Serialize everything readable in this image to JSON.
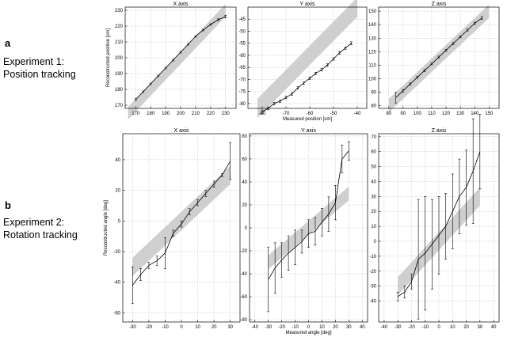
{
  "rows": [
    {
      "letter": "a",
      "desc": [
        "Experiment 1:",
        "Position tracking"
      ]
    },
    {
      "letter": "b",
      "desc": [
        "Experiment 2:",
        "Rotation tracking"
      ]
    }
  ],
  "colors": {
    "band": "#cfcfcf",
    "line": "#000000",
    "grid": "#bdbdbd",
    "frame": "#000000"
  },
  "chart_data": [
    {
      "type": "line",
      "title": "X axis",
      "ylabel": "Reconstructed position [cm]",
      "xlabel": "",
      "xlim": [
        163,
        237
      ],
      "ylim": [
        168,
        232
      ],
      "xticks": [
        170,
        180,
        190,
        200,
        210,
        220,
        230
      ],
      "yticks": [
        170,
        180,
        190,
        200,
        210,
        220,
        230
      ],
      "grid": true,
      "band": {
        "x": [
          165,
          230
        ],
        "half_width": 4
      },
      "series": [
        {
          "x": [
            170,
            175,
            180,
            185,
            190,
            195,
            200,
            205,
            210,
            215,
            220,
            225,
            230
          ],
          "y": [
            173.5,
            178.5,
            183.5,
            188.5,
            193.5,
            198.5,
            203.5,
            208.5,
            213.5,
            217.5,
            221,
            224,
            226
          ],
          "err": [
            0.6,
            0.5,
            0.5,
            0.5,
            0.5,
            0.5,
            0.5,
            0.5,
            0.5,
            0.5,
            0.5,
            0.6,
            0.8
          ]
        }
      ]
    },
    {
      "type": "line",
      "title": "Y axis",
      "ylabel": "",
      "xlabel": "Measured position [cm]",
      "xlim": [
        -86,
        -36
      ],
      "ylim": [
        -82,
        -40
      ],
      "xticks": [
        -80,
        -70,
        -60,
        -50,
        -40
      ],
      "yticks": [
        -80,
        -75,
        -70,
        -65,
        -60,
        -55,
        -50,
        -45
      ],
      "grid": true,
      "band": {
        "x": [
          -82,
          -40
        ],
        "half_width": 4
      },
      "series": [
        {
          "x": [
            -80,
            -77.5,
            -75,
            -72.5,
            -70,
            -67.5,
            -65,
            -62.5,
            -60,
            -57.5,
            -55,
            -52.5,
            -50,
            -47.5,
            -45,
            -42.5
          ],
          "y": [
            -83.5,
            -82,
            -80,
            -79,
            -77.5,
            -76,
            -73.5,
            -71.5,
            -69.5,
            -67.5,
            -66,
            -64,
            -61.5,
            -59,
            -57,
            -55
          ],
          "err": [
            0.8,
            0.6,
            0.5,
            0.5,
            0.5,
            0.5,
            0.5,
            0.5,
            0.5,
            0.5,
            0.5,
            0.5,
            0.5,
            0.5,
            0.5,
            0.6
          ]
        }
      ]
    },
    {
      "type": "line",
      "title": "Z axis",
      "ylabel": "",
      "xlabel": "",
      "xlim": [
        73,
        157
      ],
      "ylim": [
        78,
        153
      ],
      "xticks": [
        80,
        90,
        100,
        110,
        120,
        130,
        140,
        150
      ],
      "yticks": [
        80,
        90,
        100,
        110,
        120,
        130,
        140,
        150
      ],
      "grid": true,
      "band": {
        "x": [
          80,
          150
        ],
        "half_width": 5
      },
      "series": [
        {
          "x": [
            85,
            90,
            95,
            100,
            105,
            110,
            115,
            120,
            125,
            130,
            135,
            140,
            145
          ],
          "y": [
            86,
            91,
            96,
            101,
            106,
            111,
            116,
            121,
            126,
            131,
            136,
            141,
            145
          ],
          "err": [
            4,
            1,
            0.8,
            0.7,
            0.7,
            0.7,
            0.7,
            0.7,
            0.7,
            0.7,
            0.7,
            0.8,
            1
          ]
        }
      ]
    },
    {
      "type": "line",
      "title": "X axis",
      "ylabel": "Reconstructed angle [deg]",
      "xlabel": "",
      "xlim": [
        -36,
        36
      ],
      "ylim": [
        -66,
        57
      ],
      "xticks": [
        -30,
        -20,
        -10,
        0,
        10,
        20,
        30
      ],
      "yticks": [
        -60,
        -40,
        -20,
        0,
        20,
        40
      ],
      "grid": true,
      "band": {
        "x": [
          -30,
          30
        ],
        "half_width": 6
      },
      "series": [
        {
          "x": [
            -30,
            -25,
            -20,
            -15,
            -10,
            -5,
            0,
            5,
            10,
            15,
            20,
            25,
            30
          ],
          "y": [
            -42,
            -35,
            -29,
            -26,
            -21,
            -8,
            -2,
            6,
            12,
            18,
            24,
            30,
            39
          ],
          "err": [
            12,
            4,
            2,
            3,
            10,
            2,
            2,
            2,
            2,
            2,
            2,
            1,
            12
          ]
        }
      ]
    },
    {
      "type": "line",
      "title": "Y axis",
      "ylabel": "",
      "xlabel": "Measured angle [deg]",
      "xlim": [
        -44,
        44
      ],
      "ylim": [
        -82,
        82
      ],
      "xticks": [
        -40,
        -30,
        -20,
        -10,
        0,
        10,
        20,
        30,
        40
      ],
      "yticks": [
        -80,
        -60,
        -40,
        -20,
        0,
        20,
        40,
        60,
        80
      ],
      "grid": true,
      "band": {
        "x": [
          -30,
          30
        ],
        "half_width": 6
      },
      "series": [
        {
          "x": [
            -30,
            -25,
            -20,
            -15,
            -10,
            -5,
            0,
            5,
            10,
            15,
            20,
            25,
            30
          ],
          "y": [
            -45,
            -35,
            -28,
            -22,
            -17,
            -12,
            -5,
            -3,
            5,
            12,
            22,
            60,
            67
          ],
          "err": [
            28,
            22,
            15,
            15,
            15,
            10,
            12,
            12,
            12,
            15,
            15,
            12,
            8
          ]
        }
      ]
    },
    {
      "type": "line",
      "title": "Z axis",
      "ylabel": "",
      "xlabel": "",
      "xlim": [
        -44,
        44
      ],
      "ylim": [
        -54,
        72
      ],
      "xticks": [
        -40,
        -30,
        -20,
        -10,
        0,
        10,
        20,
        30,
        40
      ],
      "yticks": [
        -40,
        -30,
        -20,
        -10,
        0,
        10,
        20,
        30,
        40,
        50,
        60,
        70
      ],
      "grid": true,
      "band": {
        "x": [
          -30,
          30
        ],
        "half_width": 6
      },
      "series": [
        {
          "x": [
            -30,
            -25,
            -20,
            -15,
            -10,
            -5,
            0,
            5,
            10,
            15,
            20,
            25,
            30
          ],
          "y": [
            -37,
            -34,
            -27,
            -12,
            -8,
            -2,
            4,
            10,
            20,
            30,
            36,
            47,
            60
          ],
          "err": [
            3,
            4,
            5,
            40,
            38,
            30,
            26,
            22,
            25,
            25,
            25,
            35,
            25
          ]
        }
      ]
    }
  ]
}
